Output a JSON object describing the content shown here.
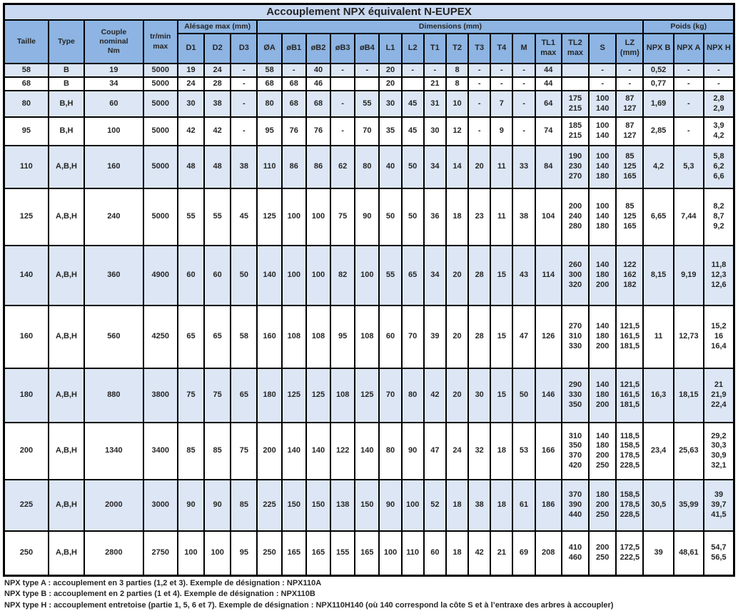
{
  "title": "Accouplement NPX équivalent N-EUPEX",
  "colors": {
    "header_blue": "#8db4e2",
    "title_blue": "#c9d9f1",
    "band_blue": "#dce6f4",
    "border": "#000000"
  },
  "header": {
    "groups": [
      {
        "label": "Taille",
        "rowspan": 2
      },
      {
        "label": "Type",
        "rowspan": 2
      },
      {
        "label": "Couple nominal\nNm",
        "rowspan": 2
      },
      {
        "label": "tr/min\nmax",
        "rowspan": 2
      },
      {
        "label": "Alésage max (mm)",
        "colspan": 3
      },
      {
        "label": "Dimensions (mm)",
        "colspan": 16
      },
      {
        "label": "Poids (kg)",
        "colspan": 3
      }
    ],
    "columns": [
      "D1",
      "D2",
      "D3",
      "ØA",
      "øB1",
      "øB2",
      "øB3",
      "øB4",
      "L1",
      "L2",
      "T1",
      "T2",
      "T3",
      "T4",
      "M",
      "TL1\nmax",
      "TL2\nmax",
      "S",
      "LZ\n(mm)",
      "NPX B",
      "NPX A",
      "NPX H"
    ]
  },
  "rows": [
    [
      "58",
      "B",
      "19",
      "5000",
      "19",
      "24",
      "-",
      "58",
      "-",
      "40",
      "-",
      "-",
      "20",
      "-",
      "-",
      "8",
      "-",
      "-",
      "-",
      "44",
      "",
      "-",
      "-",
      "0,52",
      "-",
      "-"
    ],
    [
      "68",
      "B",
      "34",
      "5000",
      "24",
      "28",
      "-",
      "68",
      "68",
      "46",
      "",
      "",
      "20",
      "",
      "21",
      "8",
      "-",
      "-",
      "-",
      "44",
      "",
      "-",
      "-",
      "0,77",
      "-",
      "-"
    ],
    [
      "80",
      "B,H",
      "60",
      "5000",
      "30",
      "38",
      "-",
      "80",
      "68",
      "68",
      "-",
      "55",
      "30",
      "45",
      "31",
      "10",
      "-",
      "7",
      "-",
      "64",
      "175\n215",
      "100\n140",
      "87\n127",
      "1,69",
      "-",
      "2,8\n2,9"
    ],
    [
      "95",
      "B,H",
      "100",
      "5000",
      "42",
      "42",
      "-",
      "95",
      "76",
      "76",
      "-",
      "70",
      "35",
      "45",
      "30",
      "12",
      "-",
      "9",
      "-",
      "74",
      "185\n215",
      "100\n140",
      "87\n127",
      "2,85",
      "-",
      "3,9\n4,2"
    ],
    [
      "110",
      "A,B,H",
      "160",
      "5000",
      "48",
      "48",
      "38",
      "110",
      "86",
      "86",
      "62",
      "80",
      "40",
      "50",
      "34",
      "14",
      "20",
      "11",
      "33",
      "84",
      "190\n230\n270",
      "100\n140\n180",
      "85\n125\n165",
      "4,2",
      "5,3",
      "5,8\n6,2\n6,6"
    ],
    [
      "125",
      "A,B,H",
      "240",
      "5000",
      "55",
      "55",
      "45",
      "125",
      "100",
      "100",
      "75",
      "90",
      "50",
      "50",
      "36",
      "18",
      "23",
      "11",
      "38",
      "104",
      "200\n240\n280",
      "100\n140\n180",
      "85\n125\n165",
      "6,65",
      "7,44",
      "8,2\n8,7\n9,2"
    ],
    [
      "140",
      "A,B,H",
      "360",
      "4900",
      "60",
      "60",
      "50",
      "140",
      "100",
      "100",
      "82",
      "100",
      "55",
      "65",
      "34",
      "20",
      "28",
      "15",
      "43",
      "114",
      "260\n300\n320",
      "140\n180\n200",
      "122\n162\n182",
      "8,15",
      "9,19",
      "11,8\n12,3\n12,6"
    ],
    [
      "160",
      "A,B,H",
      "560",
      "4250",
      "65",
      "65",
      "58",
      "160",
      "108",
      "108",
      "95",
      "108",
      "60",
      "70",
      "39",
      "20",
      "28",
      "15",
      "47",
      "126",
      "270\n310\n330",
      "140\n180\n200",
      "121,5\n161,5\n181,5",
      "11",
      "12,73",
      "15,2\n16\n16,4"
    ],
    [
      "180",
      "A,B,H",
      "880",
      "3800",
      "75",
      "75",
      "65",
      "180",
      "125",
      "125",
      "108",
      "125",
      "70",
      "80",
      "42",
      "20",
      "30",
      "15",
      "50",
      "146",
      "290\n330\n350",
      "140\n180\n200",
      "121,5\n161,5\n181,5",
      "16,3",
      "18,15",
      "21\n21,9\n22,4"
    ],
    [
      "200",
      "A,B,H",
      "1340",
      "3400",
      "85",
      "85",
      "75",
      "200",
      "140",
      "140",
      "122",
      "140",
      "80",
      "90",
      "47",
      "24",
      "32",
      "18",
      "53",
      "166",
      "310\n350\n370\n420",
      "140\n180\n200\n250",
      "118,5\n158,5\n178,5\n228,5",
      "23,4",
      "25,63",
      "29,2\n30,3\n30,9\n32,1"
    ],
    [
      "225",
      "A,B,H",
      "2000",
      "3000",
      "90",
      "90",
      "85",
      "225",
      "150",
      "150",
      "138",
      "150",
      "90",
      "100",
      "52",
      "18",
      "38",
      "18",
      "61",
      "186",
      "370\n390\n440",
      "180\n200\n250",
      "158,5\n178,5\n228,5",
      "30,5",
      "35,99",
      "39\n39,7\n41,5"
    ],
    [
      "250",
      "A,B,H",
      "2800",
      "2750",
      "100",
      "100",
      "95",
      "250",
      "165",
      "165",
      "155",
      "165",
      "100",
      "110",
      "60",
      "18",
      "42",
      "21",
      "69",
      "208",
      "410\n460",
      "200\n250",
      "172,5\n222,5",
      "39",
      "48,61",
      "54,7\n56,5"
    ]
  ],
  "footnotes": [
    "NPX type A : accouplement en 3 parties (1,2 et 3). Exemple de désignation : NPX110A",
    "NPX type B : accouplement en 2 parties (1 et 4). Exemple de désignation : NPX110B",
    "NPX type H : accouplement entretoise (partie 1, 5, 6 et 7). Exemple de désignation : NPX110H140 (où 140 correspond la côte S et à l’entraxe des arbres à accoupler)"
  ]
}
